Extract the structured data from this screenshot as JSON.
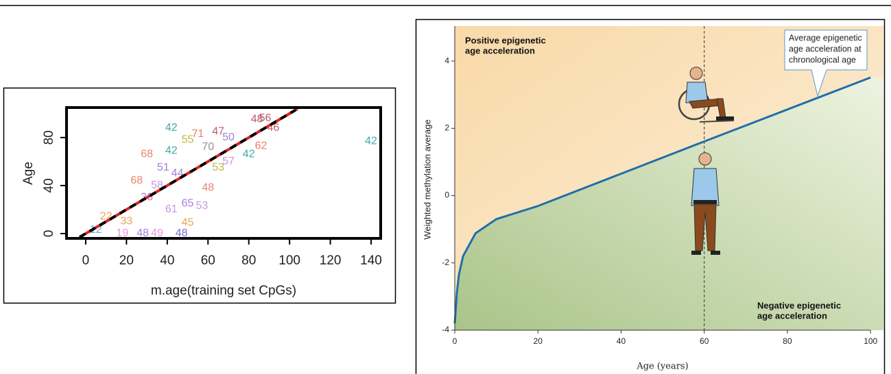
{
  "chart_data": [
    {
      "type": "scatter",
      "xlabel": "m.age(training set CpGs)",
      "ylabel": "Age",
      "xlim": [
        -9.4,
        144.7
      ],
      "ylim": [
        -4,
        105
      ],
      "xticks": [
        0,
        20,
        40,
        60,
        80,
        100,
        120,
        140
      ],
      "yticks": [
        0,
        40,
        80
      ],
      "points": {
        "x": [
          140,
          42,
          86,
          92,
          84,
          88,
          55,
          50,
          42,
          30,
          25,
          60,
          70,
          65,
          80,
          57,
          50,
          42,
          50,
          47,
          35,
          28,
          18,
          10,
          20,
          5,
          35,
          45,
          60,
          30,
          70,
          38,
          65
        ],
        "y": [
          77,
          88,
          73,
          88,
          95,
          96,
          83,
          78,
          69,
          66,
          44,
          72,
          80,
          55,
          66,
          23,
          25,
          20,
          9,
          0,
          0,
          0,
          0,
          14,
          10,
          3,
          40,
          50,
          38,
          30,
          60,
          55,
          85
        ],
        "labels": [
          "42",
          "42",
          "62",
          "46",
          "48",
          "56",
          "71",
          "55",
          "42",
          "68",
          "68",
          "70",
          "50",
          "53",
          "42",
          "53",
          "65",
          "61",
          "45",
          "48",
          "49",
          "48",
          "19",
          "22",
          "33",
          "12",
          "58",
          "44",
          "48",
          "36",
          "57",
          "51",
          "47"
        ],
        "colors": [
          "#2aa198",
          "#2aa198",
          "#e8735a",
          "#b04a5a",
          "#b04a5a",
          "#b04a5a",
          "#e8735a",
          "#b5b52a",
          "#2aa198",
          "#e8735a",
          "#e8735a",
          "#888888",
          "#9b6fd4",
          "#b5b52a",
          "#2aa198",
          "#c08ae0",
          "#9b6fd4",
          "#c08ae0",
          "#e89a3c",
          "#6a5acd",
          "#e28ad6",
          "#9b6fd4",
          "#e28ad6",
          "#e89a3c",
          "#e89a3c",
          "#4aa3df",
          "#c08ae0",
          "#9b6fd4",
          "#e8735a",
          "#9b6fd4",
          "#c08ae0",
          "#9b6fd4",
          "#b04a5a"
        ]
      },
      "lines": [
        {
          "color": "#e02020",
          "dashed": false,
          "x": [
            -3,
            104
          ],
          "y": [
            -3,
            104
          ]
        },
        {
          "color": "#000000",
          "dashed": true,
          "x": [
            -3,
            103
          ],
          "y": [
            -3,
            103
          ]
        }
      ]
    },
    {
      "type": "line",
      "xlabel": "Age (years)",
      "ylabel": "Weighted methylation average",
      "xlim": [
        0,
        103.1
      ],
      "ylim": [
        -4,
        5.04
      ],
      "xticks": [
        0,
        20,
        40,
        60,
        80,
        100
      ],
      "yticks": [
        -4,
        -2,
        0,
        2,
        4
      ],
      "x": [
        0,
        0.5,
        1,
        2,
        5,
        10,
        20,
        40,
        60,
        80,
        100
      ],
      "values": [
        -3.8,
        -2.9,
        -2.35,
        -1.8,
        -1.12,
        -0.7,
        -0.31,
        0.65,
        1.61,
        2.56,
        3.51
      ],
      "color": "#1f6fa8",
      "vline": 60,
      "annotations": {
        "positive": [
          "Positive epigenetic",
          "age acceleration"
        ],
        "negative": [
          "Negative epigenetic",
          "age acceleration"
        ],
        "callout": [
          "Average epigenetic",
          "age acceleration at",
          "chronological age"
        ]
      }
    }
  ]
}
